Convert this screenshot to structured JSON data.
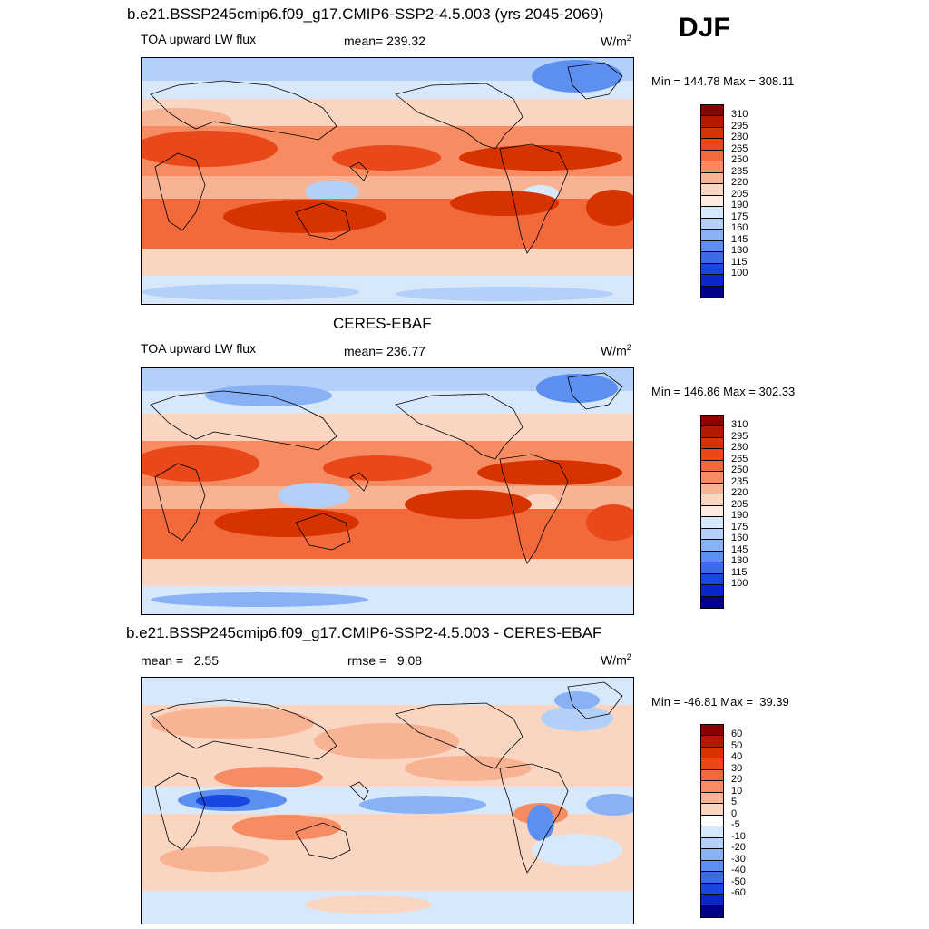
{
  "season": "DJF",
  "panels": [
    {
      "title": "b.e21.BSSP245cmip6.f09_g17.CMIP6-SSP2-4.5.003 (yrs 2045-2069)",
      "left_label": "TOA upward LW flux",
      "center_label": "mean= 239.32",
      "units": "W/m",
      "units_sup": "2",
      "minmax": "Min = 144.78 Max = 308.11",
      "colorbar": {
        "labels": [
          "310",
          "295",
          "280",
          "265",
          "250",
          "235",
          "220",
          "205",
          "190",
          "175",
          "160",
          "145",
          "130",
          "115",
          "100"
        ],
        "colors": [
          "#8b0000",
          "#b31b00",
          "#d63300",
          "#e8481a",
          "#f26a3b",
          "#f78c63",
          "#f8b394",
          "#fad6c2",
          "#fdebe0",
          "#d7e8fb",
          "#b3d0f8",
          "#88b2f5",
          "#5c8ff0",
          "#3a6ce8",
          "#1848df",
          "#0a26c9",
          "#00008b"
        ]
      }
    },
    {
      "title": "CERES-EBAF",
      "left_label": "TOA upward LW flux",
      "center_label": "mean= 236.77",
      "units": "W/m",
      "units_sup": "2",
      "minmax": "Min = 146.86 Max = 302.33",
      "colorbar": {
        "labels": [
          "310",
          "295",
          "280",
          "265",
          "250",
          "235",
          "220",
          "205",
          "190",
          "175",
          "160",
          "145",
          "130",
          "115",
          "100"
        ],
        "colors": [
          "#8b0000",
          "#b31b00",
          "#d63300",
          "#e8481a",
          "#f26a3b",
          "#f78c63",
          "#f8b394",
          "#fad6c2",
          "#fdebe0",
          "#d7e8fb",
          "#b3d0f8",
          "#88b2f5",
          "#5c8ff0",
          "#3a6ce8",
          "#1848df",
          "#0a26c9",
          "#00008b"
        ]
      }
    },
    {
      "title": "b.e21.BSSP245cmip6.f09_g17.CMIP6-SSP2-4.5.003 - CERES-EBAF",
      "left_label": "mean =   2.55",
      "center_label": "rmse =   9.08",
      "units": "W/m",
      "units_sup": "2",
      "minmax": "Min = -46.81 Max =  39.39",
      "colorbar": {
        "labels": [
          "60",
          "50",
          "40",
          "30",
          "20",
          "10",
          "5",
          "0",
          "-5",
          "-10",
          "-20",
          "-30",
          "-40",
          "-50",
          "-60"
        ],
        "colors": [
          "#8b0000",
          "#b31b00",
          "#d63300",
          "#e8481a",
          "#f26a3b",
          "#f78c63",
          "#f8b394",
          "#fad6c2",
          "#ffffff",
          "#d7e8fb",
          "#b3d0f8",
          "#88b2f5",
          "#5c8ff0",
          "#3a6ce8",
          "#1848df",
          "#0a26c9",
          "#00008b"
        ]
      }
    }
  ]
}
